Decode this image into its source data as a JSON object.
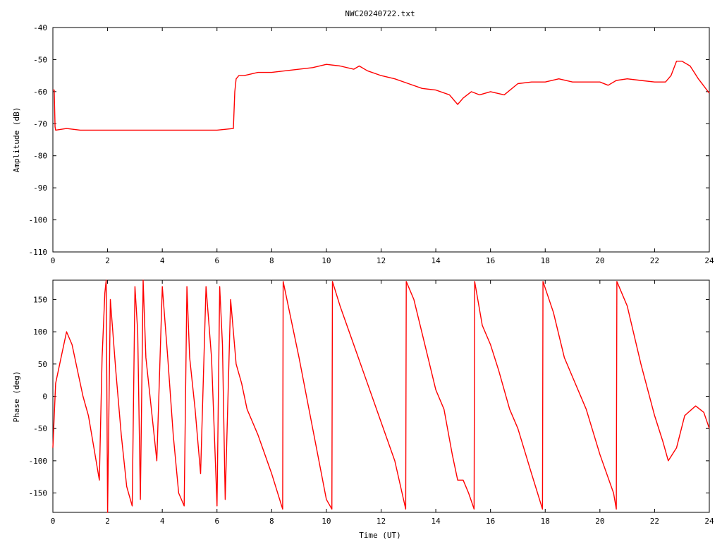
{
  "chart_data": [
    {
      "type": "line",
      "title": "NWC20240722.txt",
      "xlabel": "",
      "ylabel": "Amplitude (dB)",
      "xlim": [
        0,
        24
      ],
      "ylim": [
        -110,
        -40
      ],
      "xticks": [
        "0",
        "2",
        "4",
        "6",
        "8",
        "10",
        "12",
        "14",
        "16",
        "18",
        "20",
        "22",
        "24"
      ],
      "yticks": [
        "-40",
        "-50",
        "-60",
        "-70",
        "-80",
        "-90",
        "-100",
        "-110"
      ],
      "grid": false,
      "color": "#ff0000",
      "series": [
        {
          "x": [
            0,
            0.05,
            0.08,
            0.1,
            0.5,
            1,
            2,
            3,
            4,
            5,
            6,
            6.6,
            6.65,
            6.7,
            6.8,
            7,
            7.5,
            8,
            8.5,
            9,
            9.5,
            10,
            10.5,
            11,
            11.2,
            11.5,
            12,
            12.5,
            13,
            13.5,
            14,
            14.5,
            14.8,
            15,
            15.3,
            15.6,
            16,
            16.5,
            17,
            17.5,
            18,
            18.5,
            19,
            19.5,
            20,
            20.3,
            20.6,
            21,
            21.5,
            22,
            22.4,
            22.6,
            22.8,
            23,
            23.3,
            23.6,
            24
          ],
          "y": [
            -59.5,
            -59.5,
            -71,
            -72,
            -71.5,
            -72,
            -72,
            -72,
            -72,
            -72,
            -72,
            -71.5,
            -60,
            -56,
            -55,
            -55,
            -54,
            -54,
            -53.5,
            -53,
            -52.5,
            -51.5,
            -52,
            -53,
            -52,
            -53.5,
            -55,
            -56,
            -57.5,
            -59,
            -59.5,
            -61,
            -64,
            -62,
            -60,
            -61,
            -60,
            -61,
            -57.5,
            -57,
            -57,
            -56,
            -57,
            -57,
            -57,
            -58,
            -56.5,
            -56,
            -56.5,
            -57,
            -57,
            -55,
            -50.5,
            -50.5,
            -52,
            -56,
            -60.5
          ]
        }
      ]
    },
    {
      "type": "line",
      "title": "",
      "xlabel": "Time (UT)",
      "ylabel": "Phase (deg)",
      "xlim": [
        0,
        24
      ],
      "ylim": [
        -180,
        180
      ],
      "xticks": [
        "0",
        "2",
        "4",
        "6",
        "8",
        "10",
        "12",
        "14",
        "16",
        "18",
        "20",
        "22",
        "24"
      ],
      "yticks": [
        "150",
        "100",
        "50",
        "0",
        "-50",
        "-100",
        "-150"
      ],
      "grid": false,
      "color": "#ff0000",
      "series": [
        {
          "x": [
            0,
            0.1,
            0.3,
            0.5,
            0.7,
            0.9,
            1.1,
            1.3,
            1.5,
            1.7,
            1.8,
            1.9,
            1.95,
            2.0,
            2.1,
            2.3,
            2.5,
            2.7,
            2.9,
            3.0,
            3.1,
            3.2,
            3.3,
            3.4,
            3.6,
            3.8,
            4.0,
            4.2,
            4.4,
            4.6,
            4.8,
            4.9,
            5.0,
            5.2,
            5.4,
            5.6,
            5.8,
            6.0,
            6.1,
            6.2,
            6.3,
            6.5,
            6.7,
            6.9,
            7.1,
            7.3,
            7.5,
            8.0,
            8.4,
            8.42,
            9.0,
            9.5,
            10.0,
            10.2,
            10.22,
            10.5,
            11.0,
            11.5,
            12.0,
            12.5,
            12.9,
            12.92,
            13.2,
            13.6,
            14.0,
            14.3,
            14.6,
            14.8,
            15.0,
            15.2,
            15.4,
            15.42,
            15.7,
            16.0,
            16.3,
            16.7,
            17.0,
            17.5,
            17.9,
            17.92,
            18.3,
            18.7,
            19.0,
            19.5,
            20.0,
            20.5,
            20.6,
            20.62,
            21.0,
            21.5,
            22.0,
            22.3,
            22.5,
            22.8,
            23.1,
            23.5,
            23.8,
            24.0
          ],
          "y": [
            -80,
            20,
            60,
            100,
            80,
            40,
            0,
            -30,
            -80,
            -130,
            60,
            160,
            180,
            -180,
            150,
            40,
            -60,
            -140,
            -170,
            170,
            100,
            -160,
            180,
            60,
            -20,
            -100,
            170,
            60,
            -60,
            -150,
            -170,
            170,
            60,
            -20,
            -120,
            170,
            60,
            -170,
            170,
            80,
            -160,
            150,
            50,
            20,
            -20,
            -40,
            -60,
            -120,
            -175,
            178,
            60,
            -50,
            -160,
            -175,
            178,
            140,
            80,
            20,
            -40,
            -100,
            -175,
            178,
            150,
            80,
            10,
            -20,
            -90,
            -130,
            -130,
            -150,
            -175,
            178,
            110,
            80,
            40,
            -20,
            -50,
            -120,
            -175,
            178,
            130,
            60,
            30,
            -20,
            -90,
            -150,
            -175,
            178,
            140,
            50,
            -30,
            -70,
            -100,
            -80,
            -30,
            -15,
            -25,
            -50
          ]
        }
      ]
    }
  ]
}
